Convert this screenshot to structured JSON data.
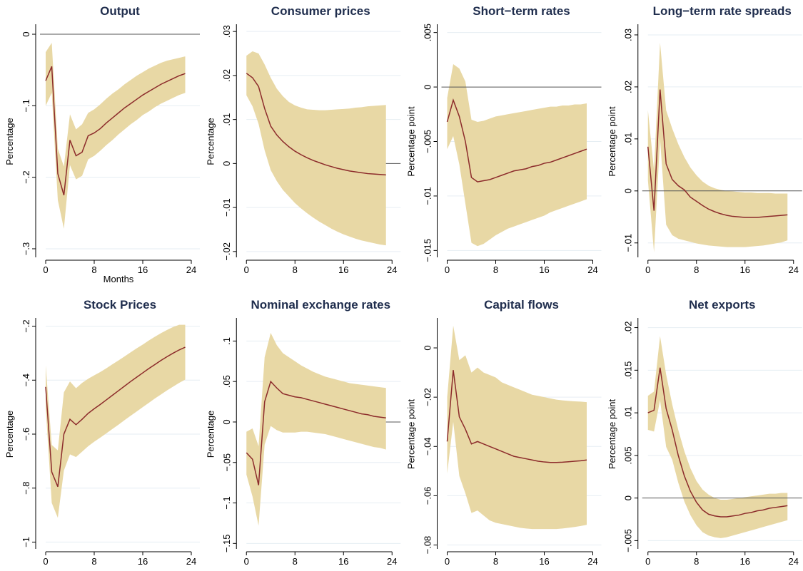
{
  "chart_data": [
    {
      "type": "line",
      "title": "Output",
      "ylabel": "Percentage",
      "xlabel": "Months",
      "ylim": [
        -0.31,
        0.01
      ],
      "yticks": [
        0,
        -0.1,
        -0.2,
        -0.3
      ],
      "ytick_labels": [
        "0",
        "−.1",
        "−.2",
        "−.3"
      ],
      "xticks": [
        0,
        8,
        16,
        24
      ],
      "ytick_grid": [
        -0.1,
        -0.2,
        -0.3
      ],
      "zero_line": true,
      "zero_line_full": true,
      "x": [
        0,
        1,
        2,
        3,
        4,
        5,
        6,
        7,
        8,
        9,
        10,
        11,
        12,
        13,
        14,
        15,
        16,
        17,
        18,
        19,
        20,
        21,
        22,
        23
      ],
      "series": [
        {
          "values": [
            -0.065,
            -0.045,
            -0.195,
            -0.225,
            -0.148,
            -0.17,
            -0.165,
            -0.142,
            -0.138,
            -0.132,
            -0.124,
            -0.117,
            -0.11,
            -0.103,
            -0.097,
            -0.091,
            -0.085,
            -0.08,
            -0.075,
            -0.07,
            -0.066,
            -0.062,
            -0.058,
            -0.055
          ]
        }
      ],
      "band_upper": [
        -0.025,
        -0.012,
        -0.16,
        -0.185,
        -0.112,
        -0.133,
        -0.126,
        -0.11,
        -0.105,
        -0.098,
        -0.09,
        -0.083,
        -0.077,
        -0.07,
        -0.064,
        -0.058,
        -0.053,
        -0.048,
        -0.044,
        -0.04,
        -0.037,
        -0.035,
        -0.033,
        -0.031
      ],
      "band_lower": [
        -0.1,
        -0.082,
        -0.232,
        -0.272,
        -0.183,
        -0.203,
        -0.198,
        -0.175,
        -0.17,
        -0.163,
        -0.155,
        -0.148,
        -0.14,
        -0.133,
        -0.126,
        -0.12,
        -0.113,
        -0.108,
        -0.102,
        -0.097,
        -0.093,
        -0.089,
        -0.085,
        -0.082
      ]
    },
    {
      "type": "line",
      "title": "Consumer prices",
      "ylabel": "Percentage",
      "xlabel": "",
      "ylim": [
        -0.021,
        0.031
      ],
      "yticks": [
        0.03,
        0.02,
        0.01,
        0,
        -0.01,
        -0.02
      ],
      "ytick_labels": [
        ".03",
        ".02",
        ".01",
        "0",
        "−.01",
        "−.02"
      ],
      "xticks": [
        0,
        8,
        16,
        24
      ],
      "ytick_grid": [
        0.03,
        0.02,
        0.01,
        -0.01,
        -0.02
      ],
      "zero_line": true,
      "zero_line_full": false,
      "x": [
        0,
        1,
        2,
        3,
        4,
        5,
        6,
        7,
        8,
        9,
        10,
        11,
        12,
        13,
        14,
        15,
        16,
        17,
        18,
        19,
        20,
        21,
        22,
        23
      ],
      "series": [
        {
          "values": [
            0.0205,
            0.0195,
            0.0175,
            0.0125,
            0.0085,
            0.0065,
            0.005,
            0.0038,
            0.0028,
            0.002,
            0.0013,
            0.0007,
            0.0002,
            -0.0003,
            -0.0007,
            -0.0011,
            -0.0014,
            -0.0017,
            -0.0019,
            -0.0021,
            -0.0023,
            -0.0024,
            -0.0025,
            -0.0026
          ]
        }
      ],
      "band_upper": [
        0.0245,
        0.0255,
        0.025,
        0.0225,
        0.0195,
        0.017,
        0.0153,
        0.014,
        0.0132,
        0.0127,
        0.0123,
        0.0122,
        0.0121,
        0.0121,
        0.0122,
        0.0123,
        0.0124,
        0.0125,
        0.0127,
        0.0128,
        0.013,
        0.0131,
        0.0132,
        0.0133
      ],
      "band_lower": [
        0.0155,
        0.013,
        0.009,
        0.003,
        -0.0015,
        -0.004,
        -0.006,
        -0.0075,
        -0.009,
        -0.0102,
        -0.0113,
        -0.0123,
        -0.0132,
        -0.014,
        -0.0148,
        -0.0155,
        -0.0161,
        -0.0166,
        -0.0171,
        -0.0175,
        -0.0178,
        -0.0181,
        -0.0184,
        -0.0186
      ]
    },
    {
      "type": "line",
      "title": "Short−term rates",
      "ylabel": "Percentage point",
      "xlabel": "",
      "ylim": [
        -0.0155,
        0.0055
      ],
      "yticks": [
        0.005,
        0,
        -0.005,
        -0.01,
        -0.015
      ],
      "ytick_labels": [
        ".005",
        "0",
        "−.005",
        "−.01",
        "−.015"
      ],
      "xticks": [
        0,
        8,
        16,
        24
      ],
      "ytick_grid": [
        0.005,
        -0.005,
        -0.01,
        -0.015
      ],
      "zero_line": true,
      "zero_line_full": true,
      "x": [
        0,
        1,
        2,
        3,
        4,
        5,
        6,
        7,
        8,
        9,
        10,
        11,
        12,
        13,
        14,
        15,
        16,
        17,
        18,
        19,
        20,
        21,
        22,
        23
      ],
      "series": [
        {
          "values": [
            -0.0032,
            -0.0012,
            -0.0027,
            -0.005,
            -0.0083,
            -0.0087,
            -0.0086,
            -0.0085,
            -0.0083,
            -0.0081,
            -0.0079,
            -0.0077,
            -0.0076,
            -0.0075,
            -0.0073,
            -0.0072,
            -0.007,
            -0.0069,
            -0.0067,
            -0.0065,
            -0.0063,
            -0.0061,
            -0.0059,
            -0.0057
          ]
        }
      ],
      "band_upper": [
        -0.001,
        0.0021,
        0.0017,
        0.0005,
        -0.003,
        -0.0032,
        -0.0031,
        -0.0029,
        -0.0027,
        -0.0026,
        -0.0025,
        -0.0024,
        -0.0023,
        -0.0022,
        -0.0021,
        -0.002,
        -0.0019,
        -0.0018,
        -0.0018,
        -0.0017,
        -0.0017,
        -0.0016,
        -0.0016,
        -0.0015
      ],
      "band_lower": [
        -0.0057,
        -0.0045,
        -0.0071,
        -0.0107,
        -0.0143,
        -0.0146,
        -0.0144,
        -0.014,
        -0.0136,
        -0.0133,
        -0.013,
        -0.0128,
        -0.0126,
        -0.0124,
        -0.0122,
        -0.012,
        -0.0118,
        -0.0115,
        -0.0113,
        -0.0111,
        -0.0109,
        -0.0107,
        -0.0105,
        -0.0103
      ]
    },
    {
      "type": "line",
      "title": "Long−term rate spreads",
      "ylabel": "Percentage point",
      "xlabel": "",
      "ylim": [
        -0.0125,
        0.0315
      ],
      "yticks": [
        0.03,
        0.02,
        0.01,
        0,
        -0.01
      ],
      "ytick_labels": [
        ".03",
        ".02",
        ".01",
        "0",
        "−.01"
      ],
      "xticks": [
        0,
        8,
        16,
        24
      ],
      "ytick_grid": [
        0.03,
        0.02,
        0.01,
        -0.01
      ],
      "zero_line": true,
      "zero_line_full": true,
      "x": [
        0,
        1,
        2,
        3,
        4,
        5,
        6,
        7,
        8,
        9,
        10,
        11,
        12,
        13,
        14,
        15,
        16,
        17,
        18,
        19,
        20,
        21,
        22,
        23
      ],
      "series": [
        {
          "values": [
            0.0085,
            -0.0038,
            0.0195,
            0.0052,
            0.0022,
            0.001,
            0.0002,
            -0.0012,
            -0.002,
            -0.0028,
            -0.0035,
            -0.004,
            -0.0044,
            -0.0047,
            -0.0049,
            -0.005,
            -0.0051,
            -0.0051,
            -0.0051,
            -0.005,
            -0.0049,
            -0.0048,
            -0.0047,
            -0.0046
          ]
        }
      ],
      "band_upper": [
        0.0155,
        0.004,
        0.0285,
        0.0155,
        0.012,
        0.009,
        0.0065,
        0.0045,
        0.003,
        0.0018,
        0.001,
        0.0005,
        0.0002,
        0.0,
        -0.0001,
        -0.0002,
        -0.0003,
        -0.0003,
        -0.0004,
        -0.0004,
        -0.0004,
        -0.0005,
        -0.0005,
        -0.0005
      ],
      "band_lower": [
        0.002,
        -0.0118,
        0.01,
        -0.0065,
        -0.0085,
        -0.0092,
        -0.0095,
        -0.0098,
        -0.0101,
        -0.0103,
        -0.0105,
        -0.0106,
        -0.0107,
        -0.0108,
        -0.0108,
        -0.0108,
        -0.0108,
        -0.0107,
        -0.0106,
        -0.0105,
        -0.0103,
        -0.0101,
        -0.0099,
        -0.0095
      ]
    },
    {
      "type": "line",
      "title": "Stock Prices",
      "ylabel": "Percentage",
      "xlabel": "",
      "ylim": [
        -1.02,
        -0.18
      ],
      "yticks": [
        -0.2,
        -0.4,
        -0.6,
        -0.8,
        -1
      ],
      "ytick_labels": [
        "−.2",
        "−.4",
        "−.6",
        "−.8",
        "−1"
      ],
      "xticks": [
        0,
        8,
        16,
        24
      ],
      "ytick_grid": [
        -0.2,
        -0.4,
        -0.6,
        -0.8,
        -1
      ],
      "zero_line": false,
      "zero_line_full": false,
      "x": [
        0,
        1,
        2,
        3,
        4,
        5,
        6,
        7,
        8,
        9,
        10,
        11,
        12,
        13,
        14,
        15,
        16,
        17,
        18,
        19,
        20,
        21,
        22,
        23
      ],
      "series": [
        {
          "values": [
            -0.425,
            -0.74,
            -0.795,
            -0.6,
            -0.545,
            -0.565,
            -0.545,
            -0.523,
            -0.506,
            -0.49,
            -0.473,
            -0.456,
            -0.439,
            -0.422,
            -0.405,
            -0.389,
            -0.373,
            -0.357,
            -0.342,
            -0.327,
            -0.313,
            -0.3,
            -0.288,
            -0.278
          ]
        }
      ],
      "band_upper": [
        -0.345,
        -0.64,
        -0.66,
        -0.445,
        -0.405,
        -0.43,
        -0.41,
        -0.395,
        -0.382,
        -0.37,
        -0.356,
        -0.341,
        -0.327,
        -0.312,
        -0.297,
        -0.282,
        -0.268,
        -0.253,
        -0.239,
        -0.226,
        -0.214,
        -0.203,
        -0.195,
        -0.195
      ],
      "band_lower": [
        -0.5,
        -0.855,
        -0.91,
        -0.735,
        -0.675,
        -0.685,
        -0.665,
        -0.645,
        -0.628,
        -0.613,
        -0.597,
        -0.581,
        -0.565,
        -0.548,
        -0.532,
        -0.516,
        -0.5,
        -0.484,
        -0.468,
        -0.453,
        -0.438,
        -0.424,
        -0.41,
        -0.398
      ]
    },
    {
      "type": "line",
      "title": "Nominal exchange rates",
      "ylabel": "Percentage",
      "xlabel": "",
      "ylim": [
        -0.155,
        0.125
      ],
      "yticks": [
        0.1,
        0.05,
        0,
        -0.05,
        -0.1,
        -0.15
      ],
      "ytick_labels": [
        ".1",
        ".05",
        "0",
        "−.05",
        "−.1",
        "−.15"
      ],
      "xticks": [
        0,
        8,
        16,
        24
      ],
      "ytick_grid": [
        0.1,
        0.05,
        -0.05,
        -0.1,
        -0.15
      ],
      "zero_line": true,
      "zero_line_full": false,
      "x": [
        0,
        1,
        2,
        3,
        4,
        5,
        6,
        7,
        8,
        9,
        10,
        11,
        12,
        13,
        14,
        15,
        16,
        17,
        18,
        19,
        20,
        21,
        22,
        23
      ],
      "series": [
        {
          "values": [
            -0.038,
            -0.046,
            -0.078,
            0.025,
            0.05,
            0.042,
            0.035,
            0.033,
            0.031,
            0.03,
            0.028,
            0.026,
            0.024,
            0.022,
            0.02,
            0.018,
            0.016,
            0.014,
            0.012,
            0.01,
            0.009,
            0.007,
            0.006,
            0.005
          ]
        }
      ],
      "band_upper": [
        -0.012,
        -0.008,
        -0.03,
        0.08,
        0.11,
        0.095,
        0.085,
        0.08,
        0.075,
        0.07,
        0.066,
        0.062,
        0.059,
        0.056,
        0.054,
        0.052,
        0.05,
        0.048,
        0.047,
        0.046,
        0.045,
        0.044,
        0.043,
        0.042
      ],
      "band_lower": [
        -0.065,
        -0.092,
        -0.128,
        -0.028,
        -0.005,
        -0.01,
        -0.013,
        -0.013,
        -0.013,
        -0.012,
        -0.012,
        -0.013,
        -0.014,
        -0.015,
        -0.017,
        -0.019,
        -0.021,
        -0.023,
        -0.025,
        -0.027,
        -0.029,
        -0.031,
        -0.032,
        -0.034
      ]
    },
    {
      "type": "line",
      "title": "Capital flows",
      "ylabel": "Percentage point",
      "xlabel": "",
      "ylim": [
        -0.081,
        0.011
      ],
      "yticks": [
        0,
        -0.02,
        -0.04,
        -0.06,
        -0.08
      ],
      "ytick_labels": [
        "0",
        "−.02",
        "−.04",
        "−.06",
        "−.08"
      ],
      "xticks": [
        0,
        8,
        16,
        24
      ],
      "ytick_grid": [
        -0.02,
        -0.04,
        -0.06,
        -0.08
      ],
      "zero_line": false,
      "zero_line_full": false,
      "x": [
        0,
        1,
        2,
        3,
        4,
        5,
        6,
        7,
        8,
        9,
        10,
        11,
        12,
        13,
        14,
        15,
        16,
        17,
        18,
        19,
        20,
        21,
        22,
        23
      ],
      "series": [
        {
          "values": [
            -0.038,
            -0.009,
            -0.028,
            -0.033,
            -0.039,
            -0.038,
            -0.039,
            -0.04,
            -0.041,
            -0.042,
            -0.043,
            -0.044,
            -0.0445,
            -0.045,
            -0.0455,
            -0.046,
            -0.0463,
            -0.0465,
            -0.0465,
            -0.0464,
            -0.0462,
            -0.046,
            -0.0458,
            -0.0455
          ]
        }
      ],
      "band_upper": [
        -0.02,
        0.009,
        -0.005,
        -0.003,
        -0.01,
        -0.008,
        -0.01,
        -0.011,
        -0.012,
        -0.014,
        -0.015,
        -0.016,
        -0.017,
        -0.018,
        -0.019,
        -0.0195,
        -0.02,
        -0.0205,
        -0.021,
        -0.0213,
        -0.0215,
        -0.0217,
        -0.0218,
        -0.022
      ],
      "band_lower": [
        -0.051,
        -0.03,
        -0.052,
        -0.059,
        -0.067,
        -0.066,
        -0.068,
        -0.07,
        -0.071,
        -0.0715,
        -0.072,
        -0.0725,
        -0.073,
        -0.0733,
        -0.0735,
        -0.0735,
        -0.0735,
        -0.0735,
        -0.0735,
        -0.0733,
        -0.073,
        -0.0727,
        -0.0723,
        -0.0718
      ]
    },
    {
      "type": "line",
      "title": "Net exports",
      "ylabel": "Percentage point",
      "xlabel": "",
      "ylim": [
        -0.0058,
        0.0208
      ],
      "yticks": [
        0.02,
        0.015,
        0.01,
        0.005,
        0,
        -0.005
      ],
      "ytick_labels": [
        ".02",
        ".015",
        ".01",
        ".005",
        "0",
        "−.005"
      ],
      "xticks": [
        0,
        8,
        16,
        24
      ],
      "ytick_grid": [
        0.02,
        0.015,
        0.01,
        0.005,
        -0.005
      ],
      "zero_line": true,
      "zero_line_full": true,
      "x": [
        0,
        1,
        2,
        3,
        4,
        5,
        6,
        7,
        8,
        9,
        10,
        11,
        12,
        13,
        14,
        15,
        16,
        17,
        18,
        19,
        20,
        21,
        22,
        23
      ],
      "series": [
        {
          "values": [
            0.01,
            0.0103,
            0.0153,
            0.0105,
            0.008,
            0.005,
            0.0026,
            0.0008,
            -0.0005,
            -0.0014,
            -0.0019,
            -0.0021,
            -0.0022,
            -0.0022,
            -0.0021,
            -0.002,
            -0.0018,
            -0.0017,
            -0.0015,
            -0.0014,
            -0.0012,
            -0.0011,
            -0.001,
            -0.0009
          ]
        }
      ],
      "band_upper": [
        0.012,
        0.0125,
        0.019,
        0.0145,
        0.011,
        0.008,
        0.0055,
        0.0035,
        0.002,
        0.001,
        0.0004,
        0.0,
        -0.0002,
        -0.0002,
        -0.0001,
        0.0,
        0.0001,
        0.0002,
        0.0003,
        0.0004,
        0.0005,
        0.0005,
        0.0006,
        0.0006
      ],
      "band_lower": [
        0.008,
        0.0078,
        0.0115,
        0.006,
        0.0045,
        0.0018,
        -0.0004,
        -0.002,
        -0.0032,
        -0.004,
        -0.0044,
        -0.0046,
        -0.0047,
        -0.0046,
        -0.0044,
        -0.0042,
        -0.004,
        -0.0038,
        -0.0036,
        -0.0034,
        -0.0032,
        -0.003,
        -0.0028,
        -0.0026
      ]
    }
  ]
}
